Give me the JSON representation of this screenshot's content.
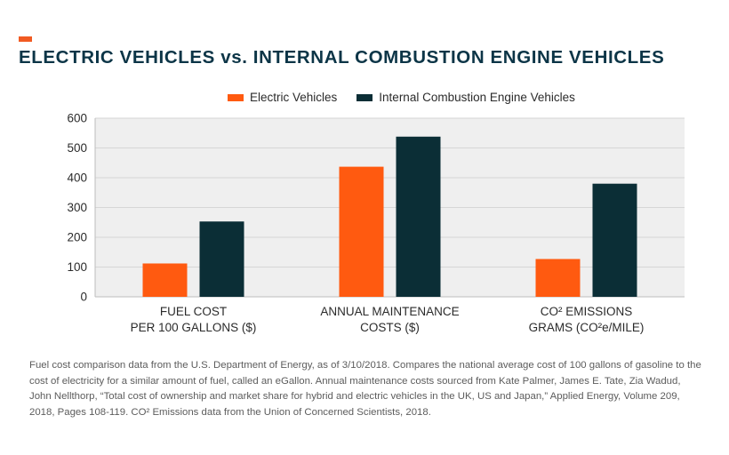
{
  "header": {
    "title": "ELECTRIC VEHICLES vs. INTERNAL COMBUSTION ENGINE VEHICLES",
    "accent_color": "#f15a22",
    "title_color": "#0c3547"
  },
  "chart_data": {
    "type": "bar",
    "categories": [
      [
        "FUEL COST",
        "PER 100 GALLONS ($)"
      ],
      [
        "ANNUAL MAINTENANCE",
        "COSTS ($)"
      ],
      [
        "CO² EMISSIONS",
        "GRAMS (CO²e/MILE)"
      ]
    ],
    "series": [
      {
        "name": "Electric Vehicles",
        "color": "#ff5a10",
        "values": [
          112,
          437,
          127
        ]
      },
      {
        "name": "Internal Combustion Engine Vehicles",
        "color": "#0b2e36",
        "values": [
          253,
          538,
          380
        ]
      }
    ],
    "yticks": [
      0,
      100,
      200,
      300,
      400,
      500,
      600
    ],
    "ylim": [
      0,
      600
    ],
    "grid": true,
    "legend_position": "top"
  },
  "footnote": {
    "text": "Fuel cost comparison data from the U.S. Department of Energy, as of 3/10/2018. Compares the national average cost of 100 gallons of gasoline to the cost of electricity for a similar amount of fuel, called an eGallon. Annual maintenance costs sourced from Kate Palmer, James E. Tate, Zia Wadud, John Nellthorp, “Total cost of ownership and market share for hybrid and electric vehicles in the UK, US and Japan,” Applied Energy, Volume 209, 2018, Pages 108-119. CO² Emissions data from the Union of Concerned Scientists, 2018."
  }
}
